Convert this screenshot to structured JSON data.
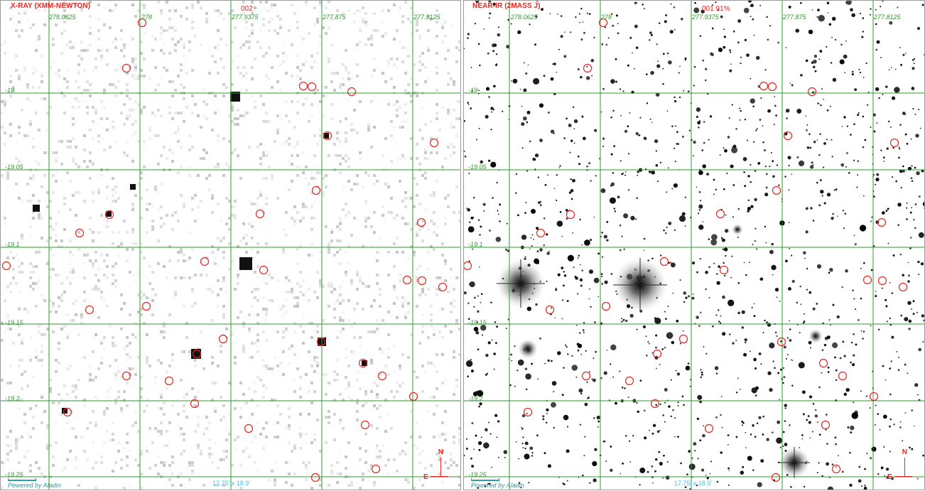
{
  "panels": [
    {
      "title": "X-RAY (XMM-NEWTON)",
      "overlay_text": "002",
      "ra_labels": [
        "278.0625",
        "278",
        "277.9375",
        "277.875",
        "277.8125"
      ],
      "dec_labels": [
        "-19",
        "-19.05",
        "-19.1",
        "-19.15",
        "-19.2",
        "-19.25"
      ],
      "fov": "17.75' x 18.9'",
      "powered_by": "Powered by Aladin",
      "compass": {
        "north": "N",
        "east": "E"
      }
    },
    {
      "title": "NEAR-IR (2MASS J)",
      "overlay_text": "001  91%",
      "ra_labels": [
        "278.0625",
        "278",
        "277.9375",
        "277.875",
        "277.8125"
      ],
      "dec_labels": [
        "-19",
        "-19.05",
        "-19.1",
        "-19.15",
        "-19.2",
        "-19.25"
      ],
      "fov": "17.75' x 18.9'",
      "powered_by": "Powered by Aladin",
      "compass": {
        "north": "N",
        "east": "E"
      }
    }
  ],
  "colors": {
    "grid": "#2f9a2f",
    "marker": "#e8251f",
    "fov_text": "#39c6f0",
    "background": "#ffffff"
  }
}
